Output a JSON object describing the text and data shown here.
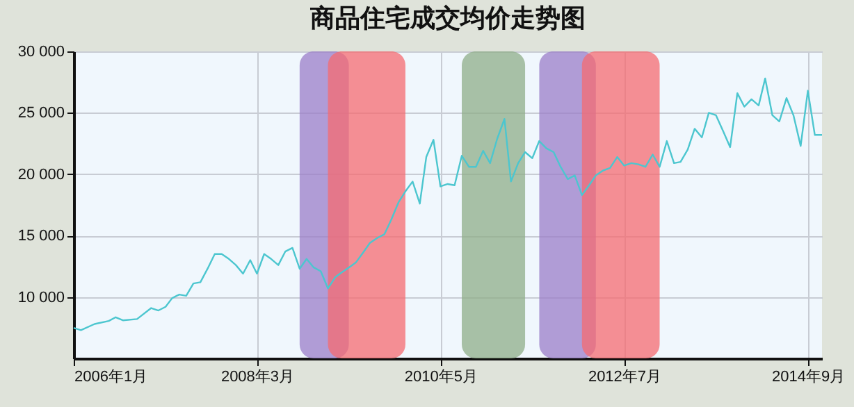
{
  "chart_data": {
    "type": "line",
    "title": "商品住宅成交均价走势图",
    "x": [
      "2006-01",
      "2006-02",
      "2006-04",
      "2006-06",
      "2006-07",
      "2006-08",
      "2006-10",
      "2006-12",
      "2007-01",
      "2007-02",
      "2007-03",
      "2007-04",
      "2007-05",
      "2007-06",
      "2007-07",
      "2007-08",
      "2007-09",
      "2007-10",
      "2007-11",
      "2007-12",
      "2008-01",
      "2008-02",
      "2008-03",
      "2008-04",
      "2008-05",
      "2008-06",
      "2008-07",
      "2008-08",
      "2008-09",
      "2008-10",
      "2008-11",
      "2008-12",
      "2009-01",
      "2009-02",
      "2009-03",
      "2009-04",
      "2009-05",
      "2009-06",
      "2009-07",
      "2009-08",
      "2009-09",
      "2009-10",
      "2009-11",
      "2009-12",
      "2010-01",
      "2010-02",
      "2010-03",
      "2010-04",
      "2010-05",
      "2010-06",
      "2010-07",
      "2010-08",
      "2010-09",
      "2010-10",
      "2010-11",
      "2010-12",
      "2011-01",
      "2011-02",
      "2011-03",
      "2011-04",
      "2011-05",
      "2011-06",
      "2011-07",
      "2011-08",
      "2011-09",
      "2011-10",
      "2011-11",
      "2011-12",
      "2012-01",
      "2012-02",
      "2012-03",
      "2012-04",
      "2012-05",
      "2012-06",
      "2012-07",
      "2012-08",
      "2012-09",
      "2012-10",
      "2012-11",
      "2012-12",
      "2013-01",
      "2013-02",
      "2013-03",
      "2013-04",
      "2013-05",
      "2013-06",
      "2013-07",
      "2013-08",
      "2013-09",
      "2013-10",
      "2013-11",
      "2013-12",
      "2014-01",
      "2014-02",
      "2014-03",
      "2014-04",
      "2014-05",
      "2014-06",
      "2014-07",
      "2014-08",
      "2014-09",
      "2014-10",
      "2014-11"
    ],
    "series": [
      {
        "color": "#4cc6cf",
        "values": [
          7480,
          7300,
          7800,
          8050,
          8350,
          8100,
          8200,
          9100,
          8900,
          9200,
          9900,
          10200,
          10100,
          11100,
          11200,
          12300,
          13500,
          13500,
          13100,
          12600,
          11900,
          13000,
          11900,
          13500,
          13100,
          12600,
          13700,
          14000,
          12300,
          13100,
          12400,
          12100,
          10700,
          11600,
          12000,
          12400,
          12800,
          13600,
          14400,
          14800,
          15100,
          16300,
          17700,
          18600,
          19400,
          17600,
          21400,
          22800,
          19000,
          19200,
          19100,
          21500,
          20600,
          20600,
          21900,
          20900,
          22900,
          24500,
          19400,
          20900,
          21800,
          21300,
          22700,
          22100,
          21800,
          20600,
          19600,
          19900,
          18300,
          19100,
          19900,
          20300,
          20500,
          21400,
          20700,
          20900,
          20800,
          20600,
          21600,
          20600,
          22700,
          20900,
          21000,
          22000,
          23700,
          23000,
          25000,
          24800,
          23500,
          22200,
          26600,
          25500,
          26100,
          25600,
          27800,
          24800,
          24300,
          26200,
          24800,
          22300,
          26800,
          23200,
          23200
        ]
      }
    ],
    "xlim": [
      "2006-01",
      "2014-11"
    ],
    "xticks": [
      {
        "value": "2006-01",
        "label": "2006年1月"
      },
      {
        "value": "2008-03",
        "label": "2008年3月"
      },
      {
        "value": "2010-05",
        "label": "2010年5月"
      },
      {
        "value": "2012-07",
        "label": "2012年7月"
      },
      {
        "value": "2014-09",
        "label": "2014年9月"
      }
    ],
    "ylim": [
      5000,
      30000
    ],
    "yticks": [
      {
        "value": 10000,
        "label": "10 000"
      },
      {
        "value": 15000,
        "label": "15 000"
      },
      {
        "value": 20000,
        "label": "20 000"
      },
      {
        "value": 25000,
        "label": "25 000"
      },
      {
        "value": 30000,
        "label": "30 000"
      }
    ],
    "bands": [
      {
        "axis": "x",
        "from": "2008-09",
        "to": "2009-04",
        "color": "#9b7ec8"
      },
      {
        "axis": "x",
        "from": "2009-01",
        "to": "2009-12",
        "color": "#f56b70"
      },
      {
        "axis": "x",
        "from": "2010-08",
        "to": "2011-05",
        "color": "#8fae88"
      },
      {
        "axis": "x",
        "from": "2011-07",
        "to": "2012-03",
        "color": "#9b7ec8"
      },
      {
        "axis": "x",
        "from": "2012-01",
        "to": "2012-12",
        "color": "#f56b70"
      }
    ],
    "grid": true
  }
}
